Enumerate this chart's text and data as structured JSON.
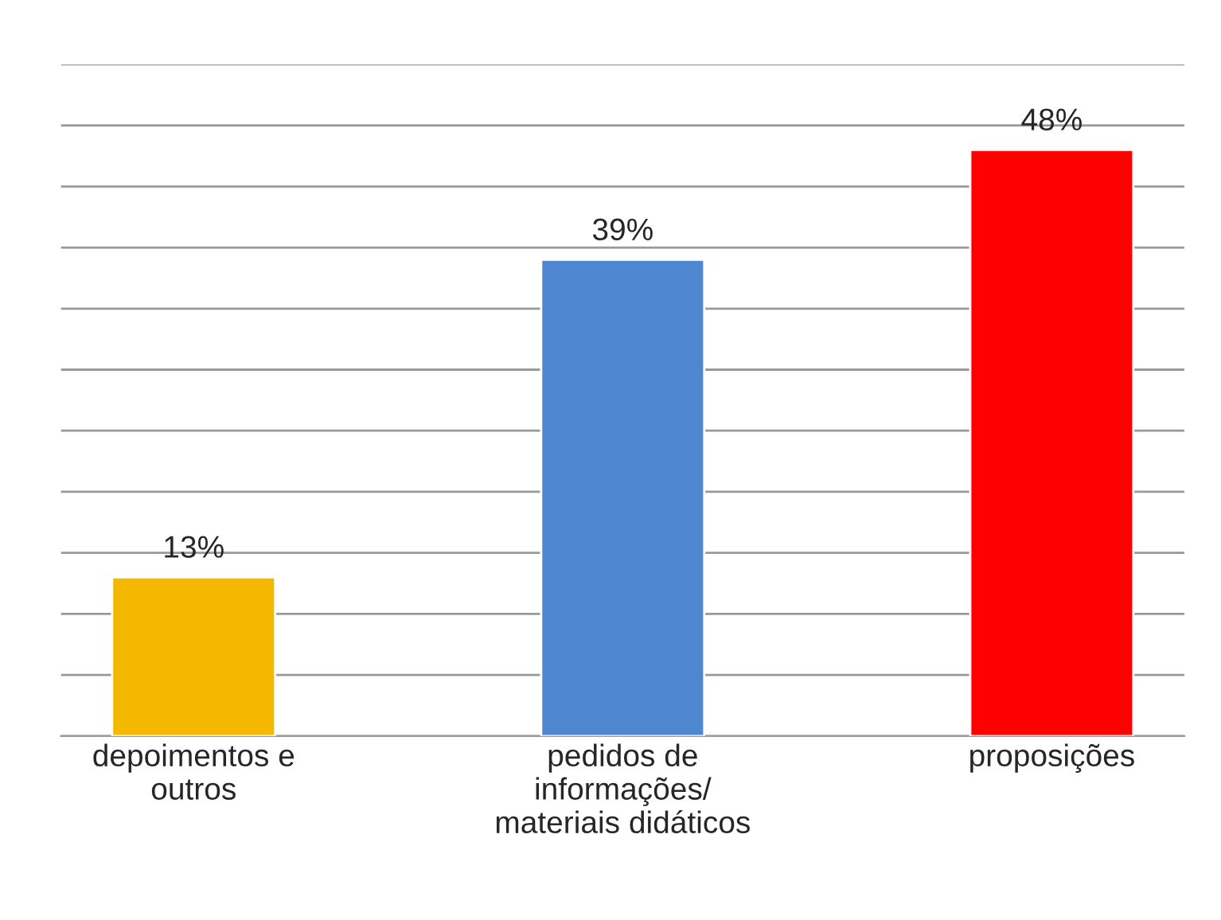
{
  "chart_data": {
    "type": "bar",
    "categories": [
      "depoimentos e\noutros",
      "pedidos de\ninformações/\nmateriais didáticos",
      "proposições"
    ],
    "values": [
      13,
      39,
      48
    ],
    "colors": [
      "#f5b800",
      "#4f86d0",
      "#ff0000"
    ],
    "value_labels": [
      "13%",
      "39%",
      "48%"
    ],
    "ylim": [
      0,
      55
    ],
    "yticks": [
      {
        "value": 0,
        "label": null
      },
      {
        "value": 5,
        "label": null
      },
      {
        "value": 10,
        "label": null
      },
      {
        "value": 15,
        "label": null
      },
      {
        "value": 20,
        "label": null
      },
      {
        "value": 25,
        "label": null
      },
      {
        "value": 30,
        "label": null
      },
      {
        "value": 35,
        "label": null
      },
      {
        "value": 40,
        "label": null
      },
      {
        "value": 45,
        "label": null
      },
      {
        "value": 50,
        "label": null
      },
      {
        "value": 55,
        "label": null
      }
    ],
    "tick_labels": "x",
    "grid": "y",
    "legend": false
  }
}
